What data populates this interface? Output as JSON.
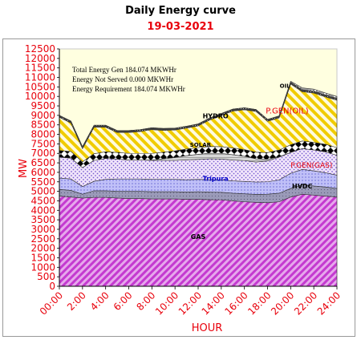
{
  "chart_data": {
    "type": "area",
    "stacked": true,
    "title": "Daily Energy curve",
    "subtitle": "19-03-2021",
    "xlabel": "HOUR",
    "ylabel": "MW",
    "ylim": [
      0,
      12500
    ],
    "yticks": [
      "0",
      "500",
      "1000",
      "1500",
      "2000",
      "2500",
      "3000",
      "3500",
      "4000",
      "4500",
      "5000",
      "5500",
      "6000",
      "6500",
      "7000",
      "7500",
      "8000",
      "8500",
      "9000",
      "9500",
      "10000",
      "10500",
      "11000",
      "11500",
      "12000",
      "12500"
    ],
    "xticks": [
      "00:00",
      "2:00",
      "4:00",
      "6:00",
      "8:00",
      "10:00",
      "12:00",
      "14:00",
      "16:00",
      "18:00",
      "20:00",
      "22:00",
      "24:00"
    ],
    "x": [
      0,
      1,
      2,
      3,
      4,
      5,
      6,
      7,
      8,
      9,
      10,
      11,
      12,
      13,
      14,
      15,
      16,
      17,
      18,
      19,
      20,
      21,
      22,
      23,
      24
    ],
    "series": [
      {
        "name": "GAS",
        "color": "#cc33cc",
        "values": [
          4750,
          4700,
          4650,
          4680,
          4680,
          4650,
          4620,
          4620,
          4600,
          4600,
          4600,
          4580,
          4580,
          4560,
          4550,
          4500,
          4450,
          4420,
          4400,
          4450,
          4700,
          4850,
          4800,
          4750,
          4700
        ]
      },
      {
        "name": "HVDC",
        "color": "#808080",
        "values": [
          350,
          350,
          200,
          350,
          350,
          350,
          380,
          380,
          380,
          380,
          380,
          380,
          400,
          400,
          400,
          400,
          420,
          420,
          450,
          450,
          450,
          500,
          480,
          480,
          450
        ]
      },
      {
        "name": "Tripura",
        "color": "#b0b0f0",
        "values": [
          600,
          600,
          400,
          500,
          600,
          650,
          650,
          650,
          650,
          650,
          650,
          650,
          650,
          650,
          650,
          650,
          650,
          650,
          650,
          700,
          800,
          800,
          800,
          750,
          700
        ]
      },
      {
        "name": "P.GEN(GAS)",
        "color": "#e8d4f0",
        "values": [
          1100,
          1100,
          1000,
          1100,
          1100,
          1050,
          1000,
          1000,
          1000,
          1000,
          1000,
          1050,
          1050,
          1100,
          1100,
          1100,
          1100,
          1050,
          1100,
          1200,
          1100,
          1100,
          1100,
          1100,
          1050
        ]
      },
      {
        "name": "SOLAR",
        "color": "#cccccc",
        "values": [
          0,
          0,
          0,
          0,
          0,
          0,
          0,
          0,
          20,
          80,
          150,
          220,
          270,
          300,
          300,
          280,
          230,
          170,
          90,
          20,
          0,
          0,
          0,
          0,
          0
        ]
      },
      {
        "name": "",
        "color": "#000000",
        "values": [
          350,
          350,
          300,
          350,
          350,
          350,
          350,
          350,
          350,
          350,
          350,
          350,
          350,
          350,
          350,
          350,
          350,
          350,
          350,
          350,
          400,
          400,
          400,
          400,
          400
        ]
      },
      {
        "name": "P.GEN(OIL)",
        "color": "#ffd700",
        "values": [
          1750,
          1500,
          700,
          1400,
          1300,
          1050,
          1100,
          1150,
          1250,
          1150,
          1100,
          1100,
          1150,
          1400,
          1650,
          1950,
          2100,
          2150,
          1650,
          1700,
          3200,
          2600,
          2600,
          2500,
          2500
        ]
      },
      {
        "name": "HYDRO",
        "color": "#000000",
        "values": [
          100,
          100,
          100,
          100,
          100,
          100,
          100,
          100,
          100,
          100,
          100,
          100,
          100,
          100,
          100,
          100,
          100,
          100,
          100,
          100,
          100,
          100,
          100,
          100,
          100
        ]
      },
      {
        "name": "OIL",
        "color": "#808080",
        "values": [
          0,
          0,
          0,
          0,
          0,
          0,
          0,
          0,
          0,
          0,
          0,
          0,
          0,
          0,
          0,
          0,
          0,
          0,
          0,
          0,
          50,
          100,
          100,
          100,
          100
        ]
      }
    ],
    "annotations": [
      {
        "text": "Total Energy Gen 184.074 MKWHr"
      },
      {
        "text": "Energy Not Served  0.000 MKWHr"
      },
      {
        "text": "Energy Requirement     184.074 MKWHr"
      }
    ],
    "area_labels": [
      "GAS",
      "HVDC",
      "Tripura",
      "P.GEN(GAS)",
      "SOLAR",
      "HYDRO",
      "P.GEN(OIL)",
      "OIL"
    ],
    "grid": false,
    "legend": "none",
    "background": "#ffffe0",
    "axis_color": "#e8000b"
  }
}
